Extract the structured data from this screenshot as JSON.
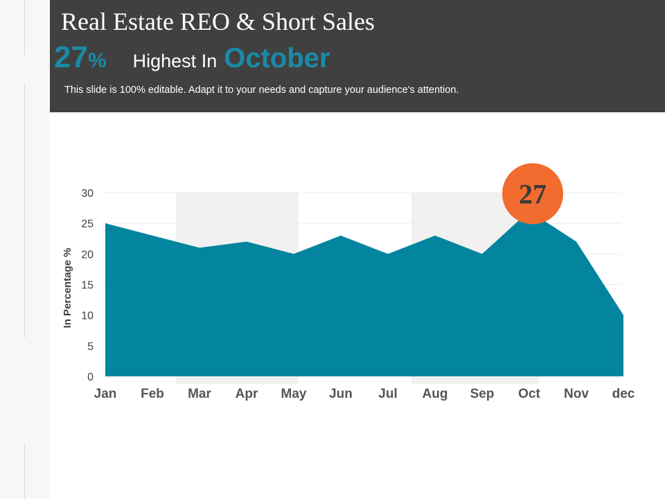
{
  "header": {
    "title": "Real Estate REO & Short Sales",
    "stat_value": "27",
    "stat_unit": "%",
    "highlight_label": "Highest  In",
    "highlight_month": "October",
    "subtitle": "This slide is 100% editable. Adapt it to your needs and capture your audience's attention."
  },
  "colors": {
    "header_bg": "#404040",
    "accent": "#1a8aa8",
    "area": "#03859f",
    "badge": "#f26b2f",
    "band": "#f1f1f1"
  },
  "chart_data": {
    "type": "area",
    "categories": [
      "Jan",
      "Feb",
      "Mar",
      "Apr",
      "May",
      "Jun",
      "Jul",
      "Aug",
      "Sep",
      "Oct",
      "Nov",
      "dec"
    ],
    "values": [
      25,
      23,
      21,
      22,
      20,
      23,
      20,
      23,
      20,
      27,
      22,
      10
    ],
    "ylabel": "In Percentage %",
    "ylim": [
      0,
      30
    ],
    "yticks": [
      0,
      5,
      10,
      15,
      20,
      25,
      30
    ],
    "gridlines": true,
    "legend": "none",
    "highlight": {
      "category": "Oct",
      "label": "27"
    }
  }
}
